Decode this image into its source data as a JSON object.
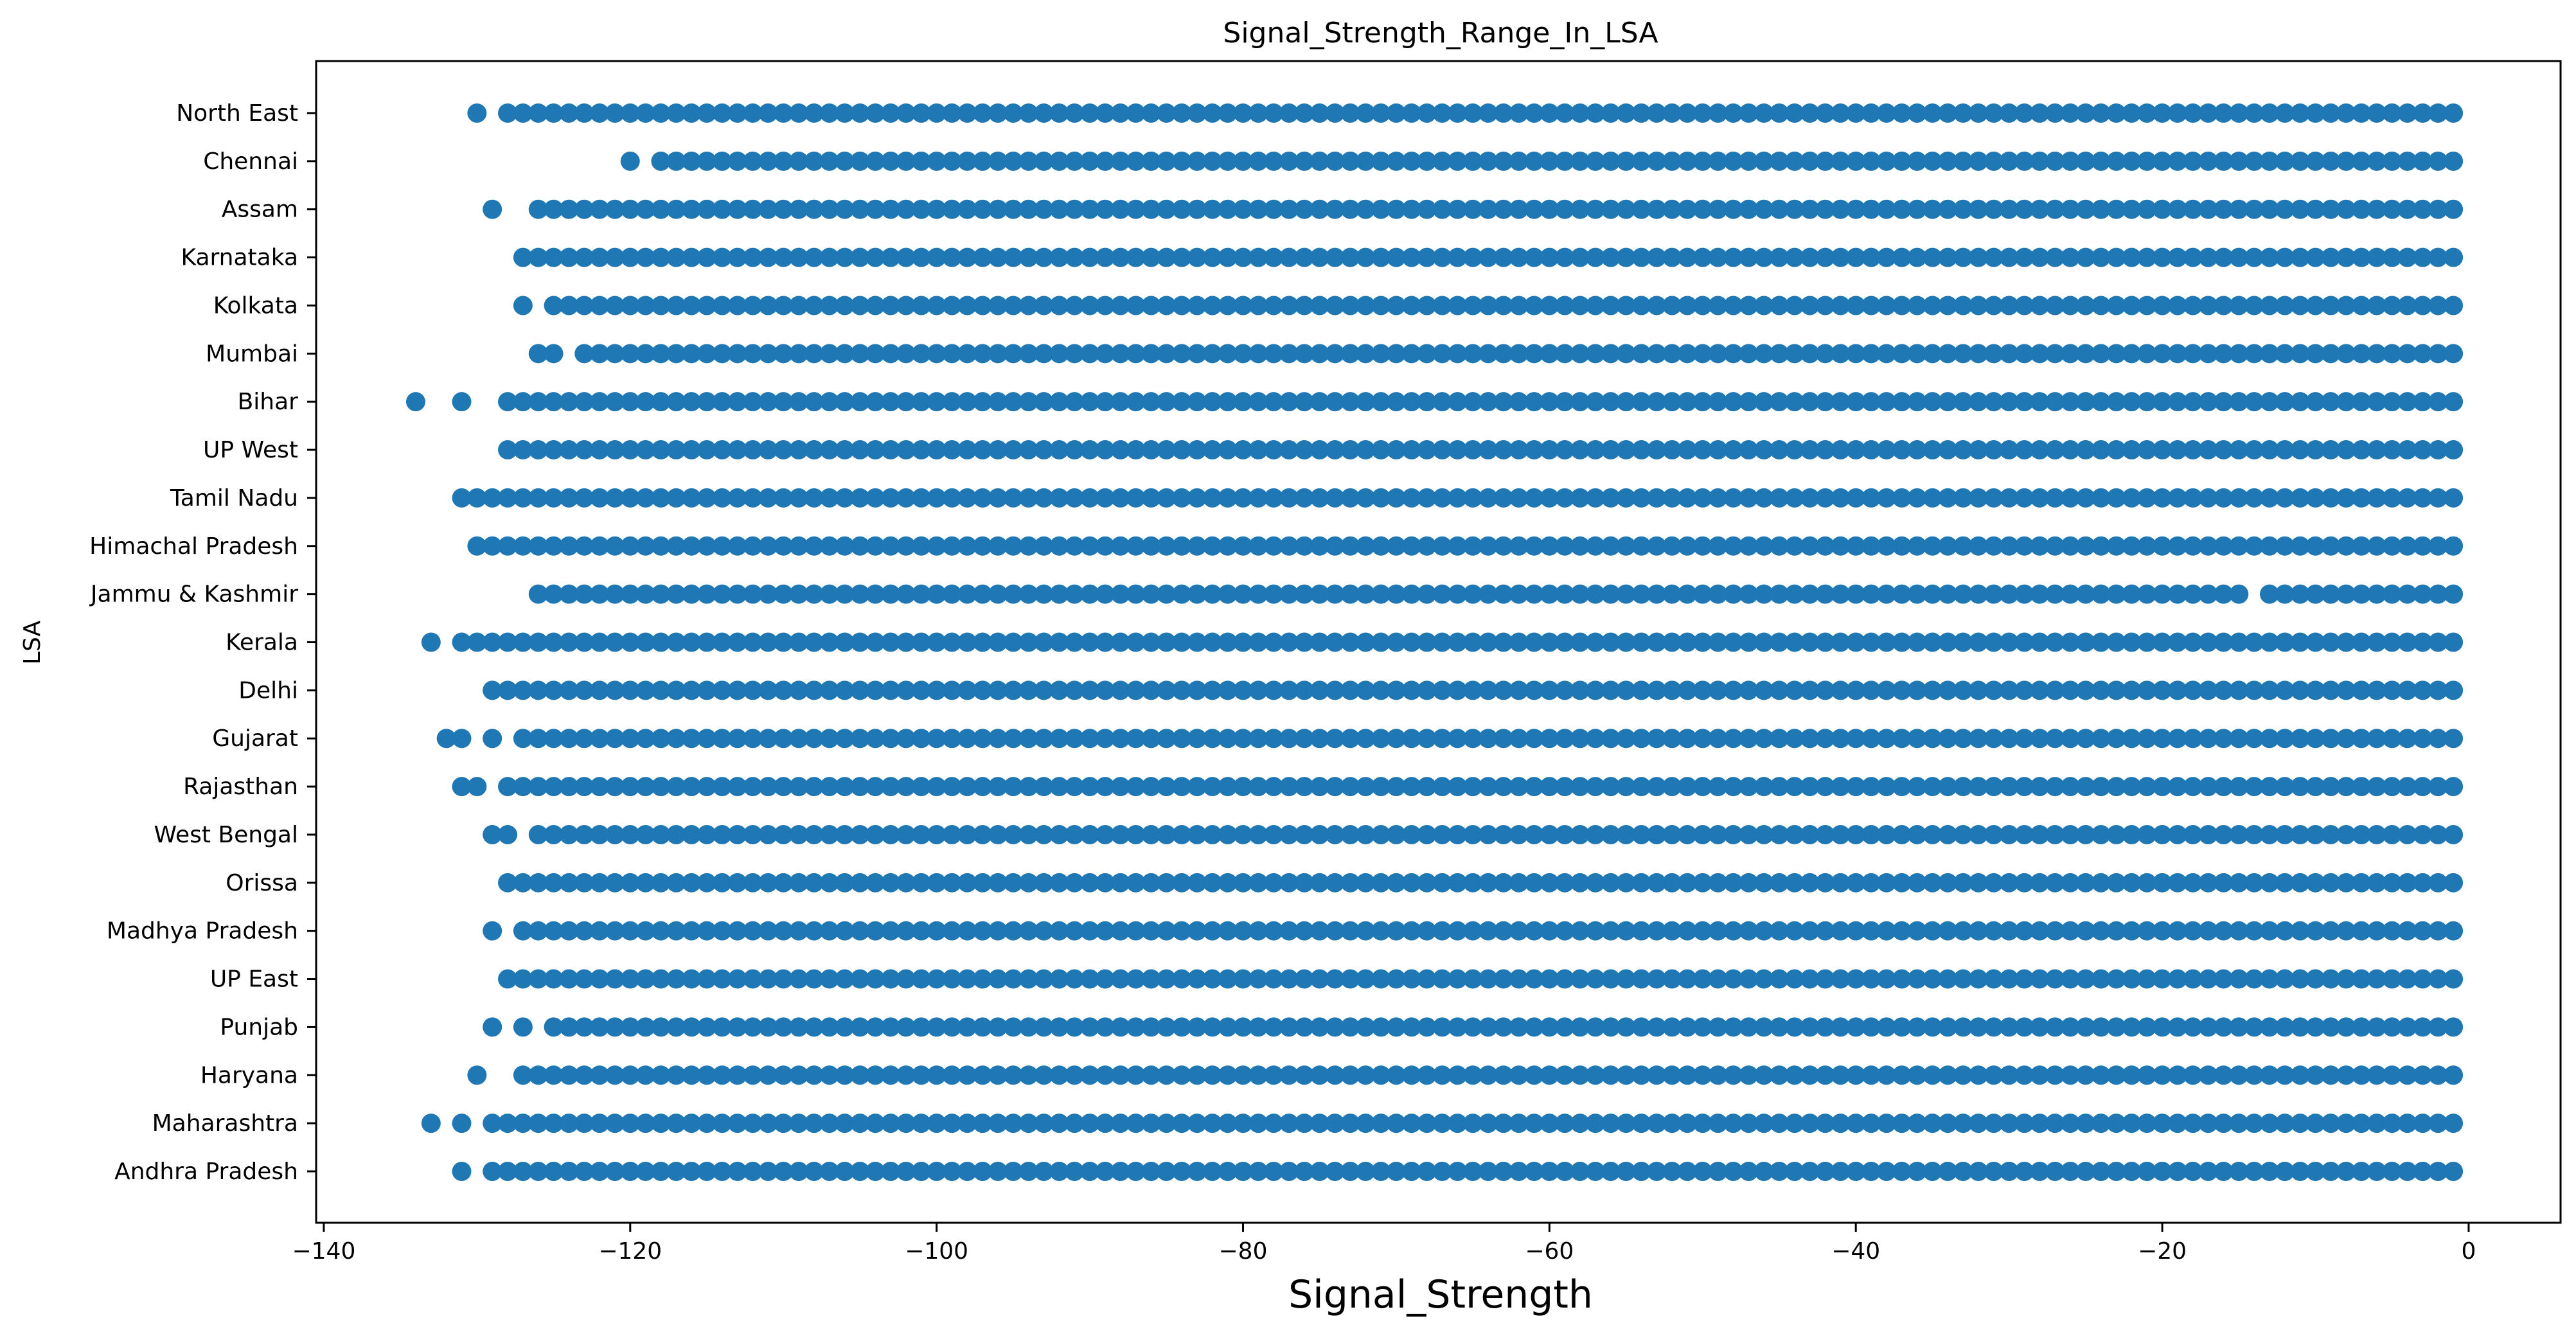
{
  "chart_data": {
    "type": "scatter",
    "title": "Signal_Strength_Range_In_LSA",
    "xlabel": "Signal_Strength",
    "ylabel": "LSA",
    "xlim": [
      -140.5,
      6
    ],
    "xticks": [
      -140,
      -120,
      -100,
      -80,
      -60,
      -40,
      -20,
      0
    ],
    "xtick_labels": [
      "−140",
      "−120",
      "−100",
      "−80",
      "−60",
      "−40",
      "−20",
      "0"
    ],
    "grid": false,
    "legend": "none",
    "marker_color": "#1f77b4",
    "categories": [
      "Andhra Pradesh",
      "Maharashtra",
      "Haryana",
      "Punjab",
      "UP East",
      "Madhya Pradesh",
      "Orissa",
      "West Bengal",
      "Rajasthan",
      "Gujarat",
      "Delhi",
      "Kerala",
      "Jammu & Kashmir",
      "Himachal Pradesh",
      "Tamil Nadu",
      "UP West",
      "Bihar",
      "Mumbai",
      "Kolkata",
      "Karnataka",
      "Assam",
      "Chennai",
      "North East"
    ],
    "series": [
      {
        "category": "Andhra Pradesh",
        "range": [
          -129,
          -1
        ],
        "outliers": [
          -131
        ]
      },
      {
        "category": "Maharashtra",
        "range": [
          -129,
          -1
        ],
        "outliers": [
          -133,
          -131
        ]
      },
      {
        "category": "Haryana",
        "range": [
          -127,
          -1
        ],
        "outliers": [
          -130
        ]
      },
      {
        "category": "Punjab",
        "range": [
          -125,
          -1
        ],
        "outliers": [
          -129,
          -127
        ]
      },
      {
        "category": "UP East",
        "range": [
          -128,
          -1
        ],
        "outliers": []
      },
      {
        "category": "Madhya Pradesh",
        "range": [
          -127,
          -1
        ],
        "outliers": [
          -129
        ]
      },
      {
        "category": "Orissa",
        "range": [
          -128,
          -1
        ],
        "outliers": []
      },
      {
        "category": "West Bengal",
        "range": [
          -126,
          -1
        ],
        "outliers": [
          -129,
          -128
        ]
      },
      {
        "category": "Rajasthan",
        "range": [
          -128,
          -1
        ],
        "outliers": [
          -131,
          -130
        ]
      },
      {
        "category": "Gujarat",
        "range": [
          -127,
          -1
        ],
        "outliers": [
          -132,
          -131,
          -129
        ]
      },
      {
        "category": "Delhi",
        "range": [
          -129,
          -1
        ],
        "outliers": []
      },
      {
        "category": "Kerala",
        "range": [
          -131,
          -1
        ],
        "outliers": [
          -133
        ]
      },
      {
        "category": "Jammu & Kashmir",
        "range": [
          -126,
          -15
        ],
        "outliers": [],
        "extra_range": [
          -13,
          -1
        ]
      },
      {
        "category": "Himachal Pradesh",
        "range": [
          -130,
          -1
        ],
        "outliers": []
      },
      {
        "category": "Tamil Nadu",
        "range": [
          -131,
          -1
        ],
        "outliers": []
      },
      {
        "category": "UP West",
        "range": [
          -128,
          -1
        ],
        "outliers": []
      },
      {
        "category": "Bihar",
        "range": [
          -128,
          -1
        ],
        "outliers": [
          -134,
          -131
        ]
      },
      {
        "category": "Mumbai",
        "range": [
          -123,
          -1
        ],
        "outliers": [
          -126,
          -125
        ]
      },
      {
        "category": "Kolkata",
        "range": [
          -125,
          -1
        ],
        "outliers": [
          -127
        ]
      },
      {
        "category": "Karnataka",
        "range": [
          -127,
          -1
        ],
        "outliers": []
      },
      {
        "category": "Assam",
        "range": [
          -126,
          -1
        ],
        "outliers": [
          -129
        ]
      },
      {
        "category": "Chennai",
        "range": [
          -118,
          -1
        ],
        "outliers": [
          -120
        ]
      },
      {
        "category": "North East",
        "range": [
          -128,
          -1
        ],
        "outliers": [
          -130
        ]
      }
    ]
  }
}
